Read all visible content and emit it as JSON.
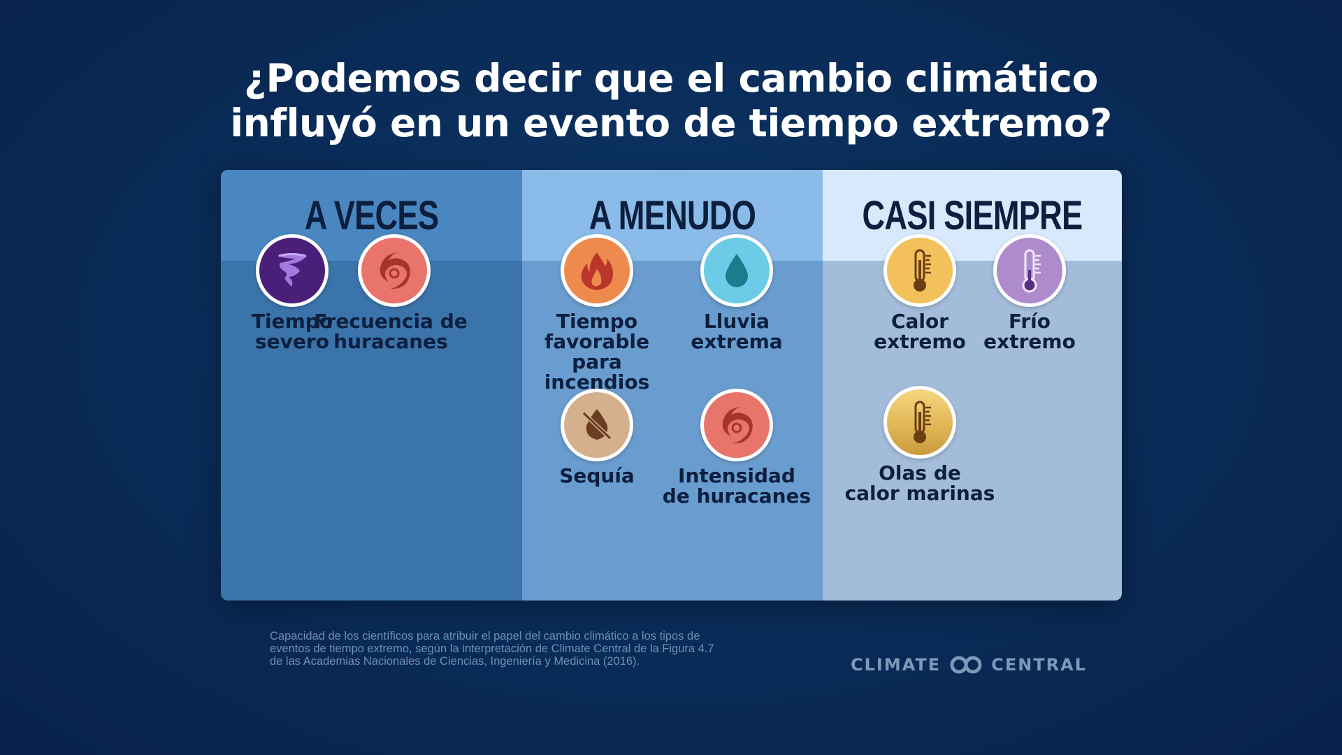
{
  "title": {
    "line1": "¿Podemos decir que el cambio climático",
    "line2": "influyó en un evento de tiempo extremo?"
  },
  "columns": [
    {
      "header": "A VECES",
      "items": [
        {
          "label_lines": [
            "Tiempo",
            "severo"
          ],
          "icon": "tornado-icon",
          "color": "#4a1f7a"
        },
        {
          "label_lines": [
            "Frecuencia de",
            "huracanes"
          ],
          "icon": "hurricane-icon",
          "color": "#e9746c"
        }
      ]
    },
    {
      "header": "A MENUDO",
      "items": [
        {
          "label_lines": [
            "Tiempo",
            "favorable",
            "para incendios"
          ],
          "icon": "fire-icon",
          "color": "#ef8a4f"
        },
        {
          "label_lines": [
            "Lluvia",
            "extrema"
          ],
          "icon": "raindrop-icon",
          "color": "#6ccbe6"
        },
        {
          "label_lines": [
            "Sequía"
          ],
          "icon": "drought-icon",
          "color": "#d5b08c"
        },
        {
          "label_lines": [
            "Intensidad",
            "de huracanes"
          ],
          "icon": "hurricane-icon",
          "color": "#e9746c"
        }
      ]
    },
    {
      "header": "CASI SIEMPRE",
      "items": [
        {
          "label_lines": [
            "Calor",
            "extremo"
          ],
          "icon": "thermometer-hot-icon",
          "color": "#f2c15c"
        },
        {
          "label_lines": [
            "Frío",
            "extremo"
          ],
          "icon": "thermometer-cold-icon",
          "color": "#ae8ccc"
        },
        {
          "label_lines": [
            "Olas de",
            "calor marinas"
          ],
          "icon": "thermometer-ocean-icon",
          "color": "#e0b95b"
        }
      ]
    }
  ],
  "footnote": {
    "line1": "Capacidad de los científicos para atribuir el papel del cambio climático a los tipos de",
    "line2": "eventos de tiempo extremo, según la interpretación de Climate Central de la Figura 4.7",
    "line3": "de las Academias Nacionales de Ciencias, Ingeniería y Medicina (2016)."
  },
  "logo": {
    "left": "CLIMATE",
    "right": "CENTRAL"
  }
}
